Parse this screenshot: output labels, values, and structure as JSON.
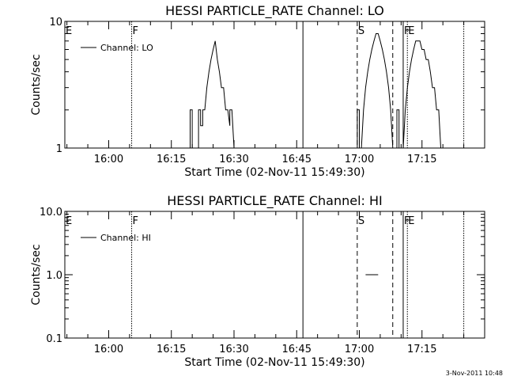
{
  "timestamp": "3-Nov-2011 10:48",
  "chart_data": [
    {
      "type": "line",
      "title": "HESSI PARTICLE_RATE Channel: LO",
      "xlabel": "Start Time (02-Nov-11 15:49:30)",
      "ylabel": "Counts/sec",
      "yscale": "log",
      "ylim": [
        1,
        10
      ],
      "xlim": [
        "15:49:30",
        "17:30:00"
      ],
      "x_ticks": [
        "16:00",
        "16:15",
        "16:30",
        "16:45",
        "17:00",
        "17:15"
      ],
      "y_ticks": [
        "1",
        "10"
      ],
      "legend_position": "top-left",
      "series": [
        {
          "name": "Channel: LO",
          "segments": [
            [
              [
                "16:19:30",
                1
              ],
              [
                "16:19:30",
                2
              ],
              [
                "16:20:00",
                2
              ],
              [
                "16:20:00",
                1
              ]
            ],
            [
              [
                "16:21:30",
                1
              ],
              [
                "16:21:30",
                2
              ],
              [
                "16:22:00",
                2
              ],
              [
                "16:22:00",
                1.5
              ],
              [
                "16:22:30",
                1.5
              ],
              [
                "16:22:30",
                2
              ],
              [
                "16:23:00",
                2
              ],
              [
                "16:23:30",
                3
              ],
              [
                "16:24:00",
                4
              ],
              [
                "16:24:30",
                5
              ],
              [
                "16:25:00",
                6
              ],
              [
                "16:25:30",
                7
              ],
              [
                "16:26:00",
                5
              ],
              [
                "16:26:30",
                4
              ],
              [
                "16:27:00",
                3
              ],
              [
                "16:27:30",
                3
              ],
              [
                "16:28:00",
                2
              ],
              [
                "16:28:30",
                2
              ],
              [
                "16:29:00",
                1.5
              ],
              [
                "16:29:00",
                2
              ],
              [
                "16:29:30",
                2
              ],
              [
                "16:30:00",
                1
              ]
            ],
            [
              [
                "16:59:30",
                1
              ],
              [
                "16:59:30",
                2
              ],
              [
                "17:00:00",
                2
              ],
              [
                "17:00:00",
                1
              ]
            ],
            [
              [
                "17:00:30",
                1
              ],
              [
                "17:01:00",
                2
              ],
              [
                "17:01:30",
                3
              ],
              [
                "17:02:00",
                4
              ],
              [
                "17:02:30",
                5
              ],
              [
                "17:03:00",
                6
              ],
              [
                "17:03:30",
                7
              ],
              [
                "17:04:00",
                8
              ],
              [
                "17:04:30",
                8
              ],
              [
                "17:05:00",
                7
              ],
              [
                "17:05:30",
                6
              ],
              [
                "17:06:00",
                5
              ],
              [
                "17:06:30",
                4
              ],
              [
                "17:07:00",
                3
              ],
              [
                "17:07:30",
                2
              ],
              [
                "17:08:00",
                1
              ]
            ],
            [
              [
                "17:09:00",
                1
              ],
              [
                "17:09:00",
                2
              ],
              [
                "17:09:30",
                2
              ],
              [
                "17:09:30",
                1
              ]
            ],
            [
              [
                "17:10:30",
                1
              ],
              [
                "17:11:00",
                2
              ],
              [
                "17:11:30",
                3
              ],
              [
                "17:12:00",
                4
              ],
              [
                "17:12:30",
                5
              ],
              [
                "17:13:00",
                6
              ],
              [
                "17:13:30",
                7
              ],
              [
                "17:14:00",
                7
              ],
              [
                "17:14:30",
                7
              ],
              [
                "17:15:00",
                6
              ],
              [
                "17:15:30",
                6
              ],
              [
                "17:16:00",
                5
              ],
              [
                "17:16:30",
                5
              ],
              [
                "17:17:00",
                4
              ],
              [
                "17:17:30",
                3
              ],
              [
                "17:18:00",
                3
              ],
              [
                "17:18:30",
                2
              ],
              [
                "17:19:00",
                2
              ],
              [
                "17:19:30",
                1
              ]
            ]
          ]
        }
      ],
      "markers": [
        {
          "label": "E",
          "time": "15:49:30",
          "style": "dotted"
        },
        {
          "label": "F",
          "time": "16:05:30",
          "style": "dotted"
        },
        {
          "label": "",
          "time": "16:46:30",
          "style": "solid"
        },
        {
          "label": "S",
          "time": "16:59:30",
          "style": "dashed"
        },
        {
          "label": "",
          "time": "17:08:00",
          "style": "dashed"
        },
        {
          "label": "F",
          "time": "17:10:30",
          "style": "solid"
        },
        {
          "label": "E",
          "time": "17:11:30",
          "style": "dotted"
        },
        {
          "label": "",
          "time": "17:25:00",
          "style": "dotted"
        }
      ]
    },
    {
      "type": "line",
      "title": "HESSI PARTICLE_RATE Channel: HI",
      "xlabel": "Start Time (02-Nov-11 15:49:30)",
      "ylabel": "Counts/sec",
      "yscale": "log",
      "ylim": [
        0.1,
        10
      ],
      "xlim": [
        "15:49:30",
        "17:30:00"
      ],
      "x_ticks": [
        "16:00",
        "16:15",
        "16:30",
        "16:45",
        "17:00",
        "17:15"
      ],
      "y_ticks": [
        "0.1",
        "1.0",
        "10.0"
      ],
      "legend_position": "top-left",
      "series": [
        {
          "name": "Channel: HI",
          "segments": [
            [
              [
                "17:01:30",
                1
              ],
              [
                "17:04:30",
                1
              ]
            ]
          ]
        }
      ],
      "markers": [
        {
          "label": "E",
          "time": "15:49:30",
          "style": "dotted"
        },
        {
          "label": "F",
          "time": "16:05:30",
          "style": "dotted"
        },
        {
          "label": "",
          "time": "16:46:30",
          "style": "solid"
        },
        {
          "label": "S",
          "time": "16:59:30",
          "style": "dashed"
        },
        {
          "label": "",
          "time": "17:08:00",
          "style": "dashed"
        },
        {
          "label": "F",
          "time": "17:10:30",
          "style": "solid"
        },
        {
          "label": "E",
          "time": "17:11:30",
          "style": "dotted"
        },
        {
          "label": "",
          "time": "17:25:00",
          "style": "dotted"
        }
      ]
    }
  ]
}
